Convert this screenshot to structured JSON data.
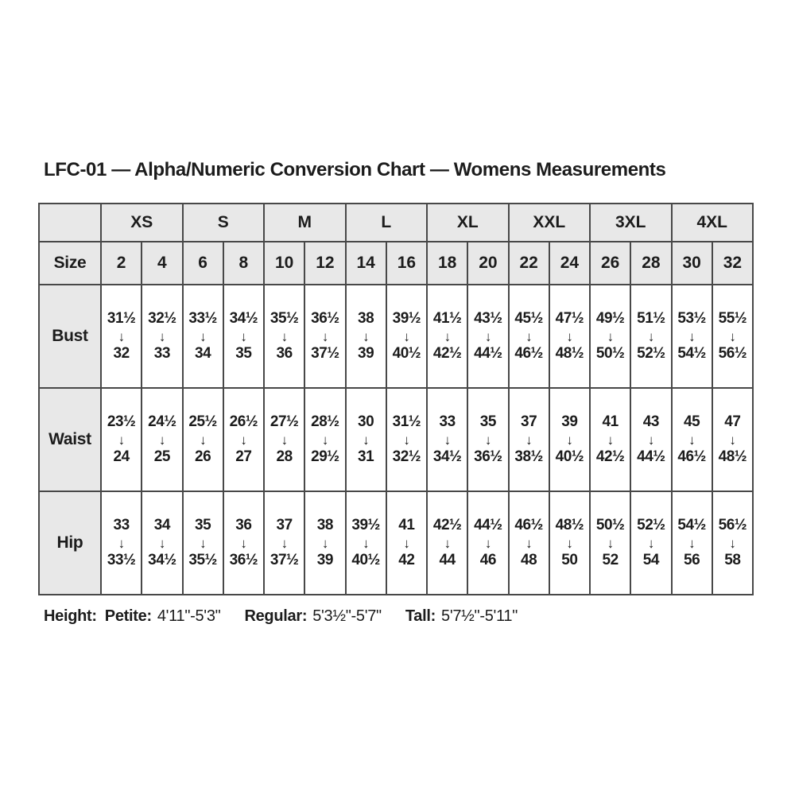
{
  "title": "LFC-01 — Alpha/Numeric Conversion Chart — Womens Measurements",
  "table": {
    "corner_label": "",
    "size_label": "Size",
    "arrow_icon": "↓",
    "alpha_sizes": [
      "XS",
      "S",
      "M",
      "L",
      "XL",
      "XXL",
      "3XL",
      "4XL"
    ],
    "numeric_sizes": [
      "2",
      "4",
      "6",
      "8",
      "10",
      "12",
      "14",
      "16",
      "18",
      "20",
      "22",
      "24",
      "26",
      "28",
      "30",
      "32"
    ],
    "rows": [
      {
        "label": "Bust",
        "ranges": [
          [
            "31½",
            "32"
          ],
          [
            "32½",
            "33"
          ],
          [
            "33½",
            "34"
          ],
          [
            "34½",
            "35"
          ],
          [
            "35½",
            "36"
          ],
          [
            "36½",
            "37½"
          ],
          [
            "38",
            "39"
          ],
          [
            "39½",
            "40½"
          ],
          [
            "41½",
            "42½"
          ],
          [
            "43½",
            "44½"
          ],
          [
            "45½",
            "46½"
          ],
          [
            "47½",
            "48½"
          ],
          [
            "49½",
            "50½"
          ],
          [
            "51½",
            "52½"
          ],
          [
            "53½",
            "54½"
          ],
          [
            "55½",
            "56½"
          ]
        ]
      },
      {
        "label": "Waist",
        "ranges": [
          [
            "23½",
            "24"
          ],
          [
            "24½",
            "25"
          ],
          [
            "25½",
            "26"
          ],
          [
            "26½",
            "27"
          ],
          [
            "27½",
            "28"
          ],
          [
            "28½",
            "29½"
          ],
          [
            "30",
            "31"
          ],
          [
            "31½",
            "32½"
          ],
          [
            "33",
            "34½"
          ],
          [
            "35",
            "36½"
          ],
          [
            "37",
            "38½"
          ],
          [
            "39",
            "40½"
          ],
          [
            "41",
            "42½"
          ],
          [
            "43",
            "44½"
          ],
          [
            "45",
            "46½"
          ],
          [
            "47",
            "48½"
          ]
        ]
      },
      {
        "label": "Hip",
        "ranges": [
          [
            "33",
            "33½"
          ],
          [
            "34",
            "34½"
          ],
          [
            "35",
            "35½"
          ],
          [
            "36",
            "36½"
          ],
          [
            "37",
            "37½"
          ],
          [
            "38",
            "39"
          ],
          [
            "39½",
            "40½"
          ],
          [
            "41",
            "42"
          ],
          [
            "42½",
            "44"
          ],
          [
            "44½",
            "46"
          ],
          [
            "46½",
            "48"
          ],
          [
            "48½",
            "50"
          ],
          [
            "50½",
            "52"
          ],
          [
            "52½",
            "54"
          ],
          [
            "54½",
            "56"
          ],
          [
            "56½",
            "58"
          ]
        ]
      }
    ]
  },
  "footer": {
    "height_label": "Height:",
    "segments": [
      {
        "label": "Petite:",
        "value": "4'11\"-5'3\""
      },
      {
        "label": "Regular:",
        "value": "5'3½\"-5'7\""
      },
      {
        "label": "Tall:",
        "value": "5'7½\"-5'11\""
      }
    ]
  },
  "colors": {
    "header_bg": "#e8e8e8",
    "border": "#484848",
    "text": "#1c1c1c",
    "background": "#ffffff"
  }
}
